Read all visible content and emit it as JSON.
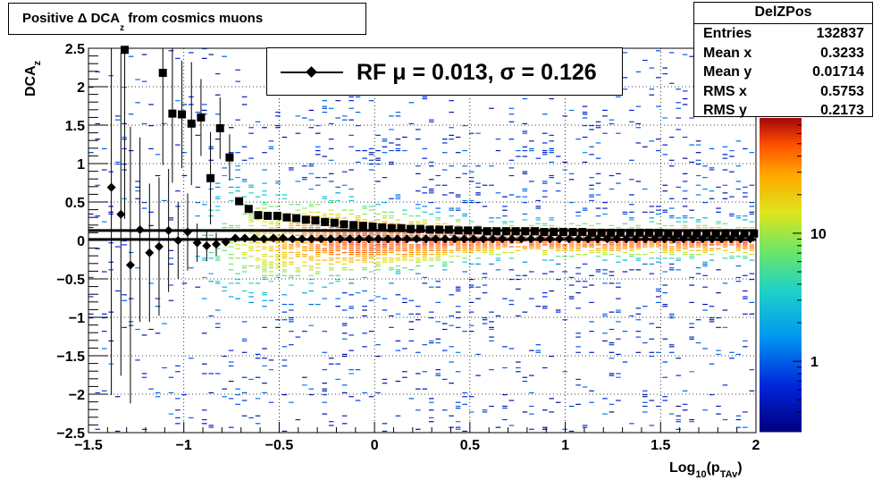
{
  "title": {
    "main": "Positive Δ DCA",
    "sub": "z",
    "tail": " from cosmics muons"
  },
  "stats": {
    "name": "DelZPos",
    "rows": [
      {
        "label": "Entries",
        "value": "132837"
      },
      {
        "label": "Mean x",
        "value": "0.3233"
      },
      {
        "label": "Mean y",
        "value": "0.01714"
      },
      {
        "label": "RMS x",
        "value": "0.5753"
      },
      {
        "label": "RMS y",
        "value": "0.2173"
      }
    ]
  },
  "legend": {
    "text": "RF μ =  0.013, σ =   0.126"
  },
  "chart_data": {
    "type": "heatmap",
    "title": "Positive Δ DCA_z from cosmics muons",
    "xlabel": {
      "main": "Log",
      "sub1": "10",
      "mid": "(p",
      "sub2": "TAv",
      "end": ")"
    },
    "ylabel": {
      "main": "DCA",
      "sub": "z"
    },
    "xlim": [
      -1.5,
      2
    ],
    "ylim": [
      -2.5,
      2.5
    ],
    "grid": true,
    "x_ticks": [
      -1.5,
      -1,
      -0.5,
      0,
      0.5,
      1,
      1.5,
      2
    ],
    "x_tick_labels": [
      "−1.5",
      "−1",
      "−0.5",
      "0",
      "0.5",
      "1",
      "1.5",
      "2"
    ],
    "y_ticks": [
      -2.5,
      -2,
      -1.5,
      -1,
      -0.5,
      0,
      0.5,
      1,
      1.5,
      2,
      2.5
    ],
    "y_tick_labels": [
      "−2.5",
      "−2",
      "−1.5",
      "−1",
      "−0.5",
      "0",
      "0.5",
      "1",
      "1.5",
      "2",
      "2.5"
    ],
    "colorbar": {
      "scale": "log",
      "labels": [
        {
          "value": 1,
          "text": "1"
        },
        {
          "value": 10,
          "text": "10"
        }
      ]
    },
    "series": [
      {
        "marker": "square",
        "x": [
          -1.36,
          -1.31,
          -1.26,
          -1.21,
          -1.16,
          -1.11,
          -1.06,
          -1.01,
          -0.96,
          -0.91,
          -0.86,
          -0.81,
          -0.76,
          -0.71,
          -0.66,
          -0.61,
          -0.56,
          -0.51,
          -0.46,
          -0.41,
          -0.36,
          -0.31,
          -0.26,
          -0.21,
          -0.16,
          -0.11,
          -0.06,
          -0.01,
          0.04,
          0.09,
          0.14,
          0.19,
          0.24,
          0.29,
          0.34,
          0.39,
          0.44,
          0.49,
          0.54,
          0.59,
          0.64,
          0.69,
          0.74,
          0.79,
          0.84,
          0.89,
          0.94,
          0.99,
          1.04,
          1.09,
          1.14,
          1.19,
          1.24,
          1.29,
          1.34,
          1.39,
          1.44,
          1.49,
          1.54,
          1.59,
          1.64,
          1.69,
          1.74,
          1.79,
          1.84,
          1.89,
          1.94,
          1.99
        ],
        "y": [
          null,
          2.48,
          null,
          null,
          null,
          2.18,
          1.65,
          1.64,
          1.52,
          1.6,
          0.81,
          1.46,
          1.08,
          0.51,
          0.41,
          0.33,
          0.32,
          0.32,
          0.3,
          0.29,
          0.27,
          0.26,
          0.24,
          0.23,
          0.21,
          0.2,
          0.19,
          0.18,
          0.17,
          0.16,
          0.16,
          0.15,
          0.15,
          0.14,
          0.14,
          0.14,
          0.13,
          0.13,
          0.13,
          0.12,
          0.12,
          0.12,
          0.12,
          0.12,
          0.12,
          0.11,
          0.11,
          0.11,
          0.11,
          0.11,
          0.1,
          0.1,
          0.1,
          0.1,
          0.1,
          0.1,
          0.1,
          0.1,
          0.09,
          0.09,
          0.09,
          0.09,
          0.09,
          0.09,
          0.09,
          0.09,
          0.09,
          0.09
        ],
        "yerr": [
          0,
          2.2,
          0,
          0,
          0,
          1.2,
          0.9,
          0.7,
          0.8,
          0.5,
          0.6,
          0.4,
          0.3,
          0.05,
          0.02,
          0.02,
          0.01,
          0.01,
          0.01,
          0.01,
          0.01,
          0.01,
          0.01,
          0.01,
          0.01,
          0.01,
          0.01,
          0.01,
          0.01,
          0.01,
          0.01,
          0.01,
          0.01,
          0.01,
          0.01,
          0.01,
          0.01,
          0.01,
          0.01,
          0.01,
          0.01,
          0.01,
          0.01,
          0.01,
          0.01,
          0.01,
          0.01,
          0.01,
          0.01,
          0.01,
          0.01,
          0.01,
          0.01,
          0.01,
          0.01,
          0.01,
          0.01,
          0.01,
          0.01,
          0.01,
          0.01,
          0.01,
          0.01,
          0.01,
          0.01,
          0.01,
          0.01,
          0.01
        ]
      },
      {
        "marker": "diamond",
        "x": [
          -1.38,
          -1.33,
          -1.28,
          -1.23,
          -1.18,
          -1.13,
          -1.08,
          -1.03,
          -0.98,
          -0.93,
          -0.88,
          -0.83,
          -0.78,
          -0.73,
          -0.68,
          -0.63,
          -0.58,
          -0.53,
          -0.48,
          -0.43,
          -0.38,
          -0.33,
          -0.28,
          -0.23,
          -0.18,
          -0.13,
          -0.08,
          -0.03,
          0.02,
          0.07,
          0.12,
          0.17,
          0.22,
          0.27,
          0.32,
          0.37,
          0.42,
          0.47,
          0.52,
          0.57,
          0.62,
          0.67,
          0.72,
          0.77,
          0.82,
          0.87,
          0.92,
          0.97,
          1.02,
          1.07,
          1.12,
          1.17,
          1.22,
          1.27,
          1.32,
          1.37,
          1.42,
          1.47,
          1.52,
          1.57,
          1.62,
          1.67,
          1.72,
          1.77,
          1.82,
          1.87,
          1.92,
          1.97
        ],
        "y": [
          0.69,
          0.34,
          -0.32,
          0.14,
          -0.16,
          -0.08,
          0.13,
          0.0,
          0.11,
          -0.03,
          -0.07,
          -0.05,
          -0.02,
          0.03,
          0.03,
          0.03,
          0.02,
          0.03,
          0.03,
          0.02,
          0.02,
          0.02,
          0.02,
          0.02,
          0.02,
          0.02,
          0.02,
          0.02,
          0.02,
          0.02,
          0.02,
          0.02,
          0.02,
          0.02,
          0.02,
          0.02,
          0.02,
          0.02,
          0.02,
          0.02,
          0.02,
          0.02,
          0.02,
          0.02,
          0.02,
          0.02,
          0.02,
          0.02,
          0.02,
          0.02,
          0.02,
          0.02,
          0.02,
          0.02,
          0.02,
          0.02,
          0.02,
          0.02,
          0.02,
          0.02,
          0.02,
          0.02,
          0.02,
          0.02,
          0.02,
          0.02,
          0.02,
          0.02
        ],
        "yerr": [
          2.7,
          2.1,
          1.8,
          1.2,
          0.9,
          0.9,
          0.8,
          0.5,
          0.5,
          0.25,
          0.2,
          0.15,
          0.05,
          0.02,
          0.02,
          0.01,
          0.01,
          0.01,
          0.01,
          0.01,
          0.01,
          0.01,
          0.01,
          0.01,
          0.01,
          0.01,
          0.01,
          0.01,
          0.01,
          0.01,
          0.01,
          0.01,
          0.01,
          0.01,
          0.01,
          0.01,
          0.01,
          0.01,
          0.01,
          0.01,
          0.01,
          0.01,
          0.01,
          0.01,
          0.01,
          0.01,
          0.01,
          0.01,
          0.01,
          0.01,
          0.01,
          0.01,
          0.01,
          0.01,
          0.01,
          0.01,
          0.01,
          0.01,
          0.01,
          0.01,
          0.01,
          0.01,
          0.01,
          0.01,
          0.01,
          0.01,
          0.01,
          0.01
        ]
      }
    ],
    "fit_lines": [
      {
        "x": [
          -1.5,
          2.0
        ],
        "y": [
          0.13,
          0.13
        ]
      },
      {
        "x": [
          -1.5,
          2.0
        ],
        "y": [
          0.013,
          0.013
        ]
      }
    ]
  }
}
